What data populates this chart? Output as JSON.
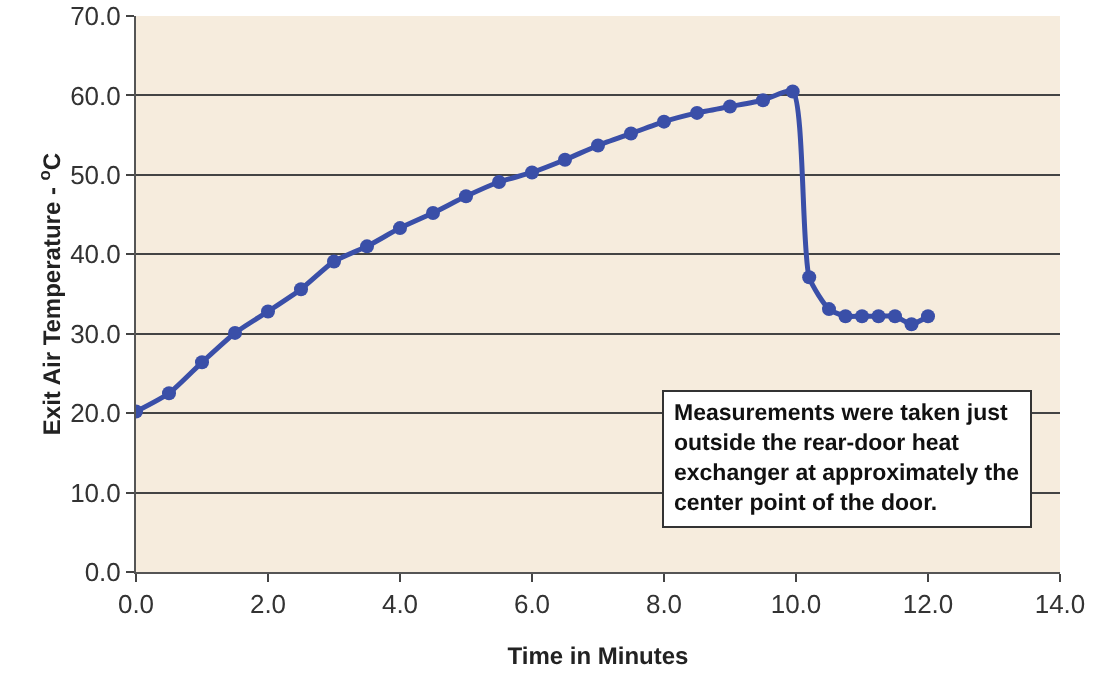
{
  "chart_data": {
    "type": "line",
    "xlabel": "Time in Minutes",
    "ylabel": "Exit Air Temperature - $^{o}$C",
    "x": [
      0,
      0.5,
      1,
      1.5,
      2,
      2.5,
      3,
      3.5,
      4,
      4.5,
      5,
      5.5,
      6,
      6.5,
      7,
      7.5,
      8,
      8.5,
      9,
      9.5,
      9.95,
      10.2,
      10.5,
      10.75,
      11,
      11.25,
      11.5,
      11.75,
      12
    ],
    "series": [
      {
        "color": "#3a4fa8",
        "values": [
          20.2,
          22.5,
          26.4,
          30.1,
          32.8,
          35.6,
          39.1,
          41.0,
          43.3,
          45.2,
          47.3,
          49.1,
          50.3,
          51.9,
          53.7,
          55.2,
          56.7,
          57.8,
          58.6,
          59.4,
          60.5,
          37.1,
          33.1,
          32.2,
          32.2,
          32.2,
          32.2,
          31.2,
          32.2
        ]
      }
    ],
    "xlim": [
      0,
      14
    ],
    "xticks": [
      {
        "value": 0,
        "label": "0.0"
      },
      {
        "value": 2,
        "label": "2.0"
      },
      {
        "value": 4,
        "label": "4.0"
      },
      {
        "value": 6,
        "label": "6.0"
      },
      {
        "value": 8,
        "label": "8.0"
      },
      {
        "value": 10,
        "label": "10.0"
      },
      {
        "value": 12,
        "label": "12.0"
      },
      {
        "value": 14,
        "label": "14.0"
      }
    ],
    "ylim": [
      0,
      70
    ],
    "yticks": [
      {
        "value": 0,
        "label": "0.0"
      },
      {
        "value": 10,
        "label": "10.0"
      },
      {
        "value": 20,
        "label": "20.0"
      },
      {
        "value": 30,
        "label": "30.0"
      },
      {
        "value": 40,
        "label": "40.0"
      },
      {
        "value": 50,
        "label": "50.0"
      },
      {
        "value": 60,
        "label": "60.0"
      },
      {
        "value": 70,
        "label": "70.0"
      }
    ],
    "grid": "y",
    "marker": "circle",
    "line_style": "solid",
    "annotations": [
      "Measurements were taken just outside the rear-door heat exchanger at approximately the center point of the door."
    ]
  }
}
